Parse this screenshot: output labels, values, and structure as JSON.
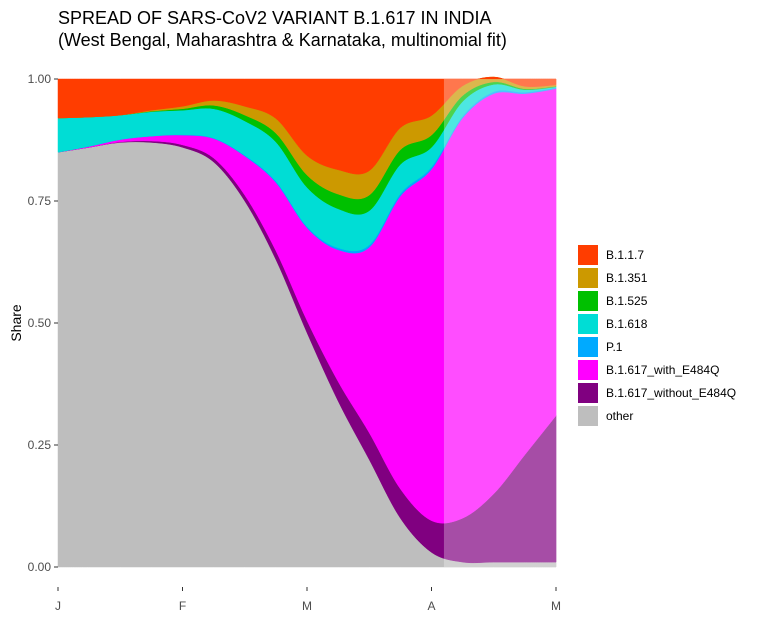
{
  "chart_data": {
    "type": "area",
    "title": "SPREAD OF SARS-CoV2 VARIANT B.1.617 IN INDIA",
    "subtitle": "(West Bengal, Maharashtra & Karnataka, multinomial fit)",
    "xlabel": "",
    "ylabel": "Share",
    "stacked": true,
    "xlim": [
      0,
      4
    ],
    "ylim": [
      0,
      1
    ],
    "x_tick_values": [
      0,
      1,
      2,
      3,
      4
    ],
    "x_tick_labels": [
      "J",
      "F",
      "M",
      "A",
      "M"
    ],
    "y_tick_values": [
      0,
      0.25,
      0.5,
      0.75,
      1
    ],
    "y_tick_labels": [
      "0.00",
      "0.25",
      "0.50",
      "0.75",
      "1.00"
    ],
    "projection_start": 3.1,
    "grid": false,
    "legend_position": "right",
    "x": [
      0,
      0.25,
      0.5,
      0.75,
      1,
      1.25,
      1.5,
      1.75,
      2,
      2.25,
      2.5,
      2.75,
      3,
      3.25,
      3.5,
      3.75,
      4
    ],
    "series": [
      {
        "name": "other",
        "color": "#BEBEBE",
        "values": [
          0.85,
          0.86,
          0.87,
          0.87,
          0.86,
          0.83,
          0.75,
          0.63,
          0.48,
          0.34,
          0.22,
          0.1,
          0.03,
          0.01,
          0.01,
          0.01,
          0.01
        ]
      },
      {
        "name": "B.1.617_without_E484Q",
        "color": "#800080",
        "values": [
          0,
          0,
          0.001,
          0.003,
          0.005,
          0.008,
          0.012,
          0.018,
          0.025,
          0.04,
          0.055,
          0.06,
          0.065,
          0.09,
          0.14,
          0.22,
          0.3
        ]
      },
      {
        "name": "B.1.617_with_E484Q",
        "color": "#FF00FF",
        "values": [
          0,
          0.002,
          0.005,
          0.01,
          0.02,
          0.04,
          0.08,
          0.14,
          0.19,
          0.27,
          0.38,
          0.6,
          0.72,
          0.82,
          0.82,
          0.74,
          0.67
        ]
      },
      {
        "name": "P.1",
        "color": "#00AAFF",
        "values": [
          0,
          0,
          0,
          0,
          0.001,
          0.001,
          0.002,
          0.003,
          0.003,
          0.004,
          0.005,
          0.005,
          0.005,
          0.004,
          0.004,
          0.003,
          0.002
        ]
      },
      {
        "name": "B.1.618",
        "color": "#00DDD5",
        "values": [
          0.07,
          0.06,
          0.05,
          0.05,
          0.05,
          0.06,
          0.07,
          0.08,
          0.08,
          0.08,
          0.07,
          0.06,
          0.04,
          0.03,
          0.015,
          0.005,
          0.002
        ]
      },
      {
        "name": "B.1.525",
        "color": "#00C000",
        "values": [
          0,
          0,
          0,
          0.001,
          0.003,
          0.007,
          0.012,
          0.018,
          0.025,
          0.03,
          0.032,
          0.03,
          0.025,
          0.012,
          0.005,
          0.002,
          0.001
        ]
      },
      {
        "name": "B.1.351",
        "color": "#CC9900",
        "values": [
          0,
          0,
          0,
          0.002,
          0.005,
          0.01,
          0.018,
          0.03,
          0.04,
          0.05,
          0.05,
          0.045,
          0.04,
          0.02,
          0.01,
          0.005,
          0.003
        ]
      },
      {
        "name": "B.1.1.7",
        "color": "#FF3D00",
        "values": [
          0.08,
          0.078,
          0.074,
          0.064,
          0.056,
          0.045,
          0.036,
          0.081,
          0.157,
          0.186,
          0.188,
          0.09,
          0.065,
          0.024,
          0.016,
          0.015,
          0.012
        ]
      }
    ]
  },
  "legend": {
    "items": [
      {
        "label": "B.1.1.7",
        "color": "#FF3D00"
      },
      {
        "label": "B.1.351",
        "color": "#CC9900"
      },
      {
        "label": "B.1.525",
        "color": "#00C000"
      },
      {
        "label": "B.1.618",
        "color": "#00DDD5"
      },
      {
        "label": "P.1",
        "color": "#00AAFF"
      },
      {
        "label": "B.1.617_with_E484Q",
        "color": "#FF00FF"
      },
      {
        "label": "B.1.617_without_E484Q",
        "color": "#800080"
      },
      {
        "label": "other",
        "color": "#BEBEBE"
      }
    ]
  }
}
